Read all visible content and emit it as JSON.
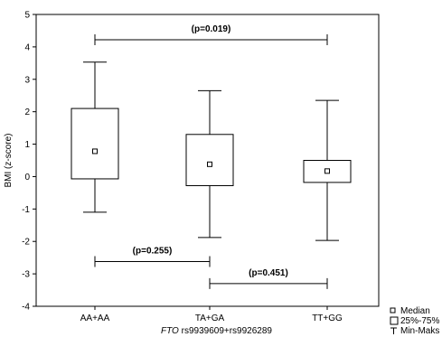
{
  "chart_data": {
    "type": "box",
    "categories": [
      "AA+AA",
      "TA+GA",
      "TT+GG"
    ],
    "series": [
      {
        "median": [
          0.78,
          0.38,
          0.17
        ],
        "q1": [
          -0.07,
          -0.28,
          -0.18
        ],
        "q3": [
          2.1,
          1.3,
          0.5
        ],
        "min": [
          -1.1,
          -1.88,
          -1.97
        ],
        "max": [
          3.53,
          2.65,
          2.35
        ]
      }
    ],
    "ylabel": "BMI (z-score)",
    "xlabel_gene": "FTO",
    "xlabel_rest": " rs9939609+rs9926289",
    "ylim": [
      -4,
      5
    ],
    "yticks": [
      "-4",
      "-3",
      "-2",
      "-1",
      "0",
      "1",
      "2",
      "3",
      "4",
      "5"
    ],
    "grid": false,
    "annotations": [
      {
        "label": "(p=0.019)",
        "from": 0,
        "to": 2,
        "y": 4.22
      },
      {
        "label": "(p=0.255)",
        "from": 0,
        "to": 1,
        "y": -2.62
      },
      {
        "label": "(p=0.451)",
        "from": 1,
        "to": 2,
        "y": -3.3
      }
    ],
    "legend": {
      "position": "bottom-right",
      "entries": [
        {
          "symbol": "small-square",
          "label": "Median"
        },
        {
          "symbol": "large-square",
          "label": "25%-75%"
        },
        {
          "symbol": "whisker",
          "label": "Min-Maks"
        }
      ]
    }
  }
}
